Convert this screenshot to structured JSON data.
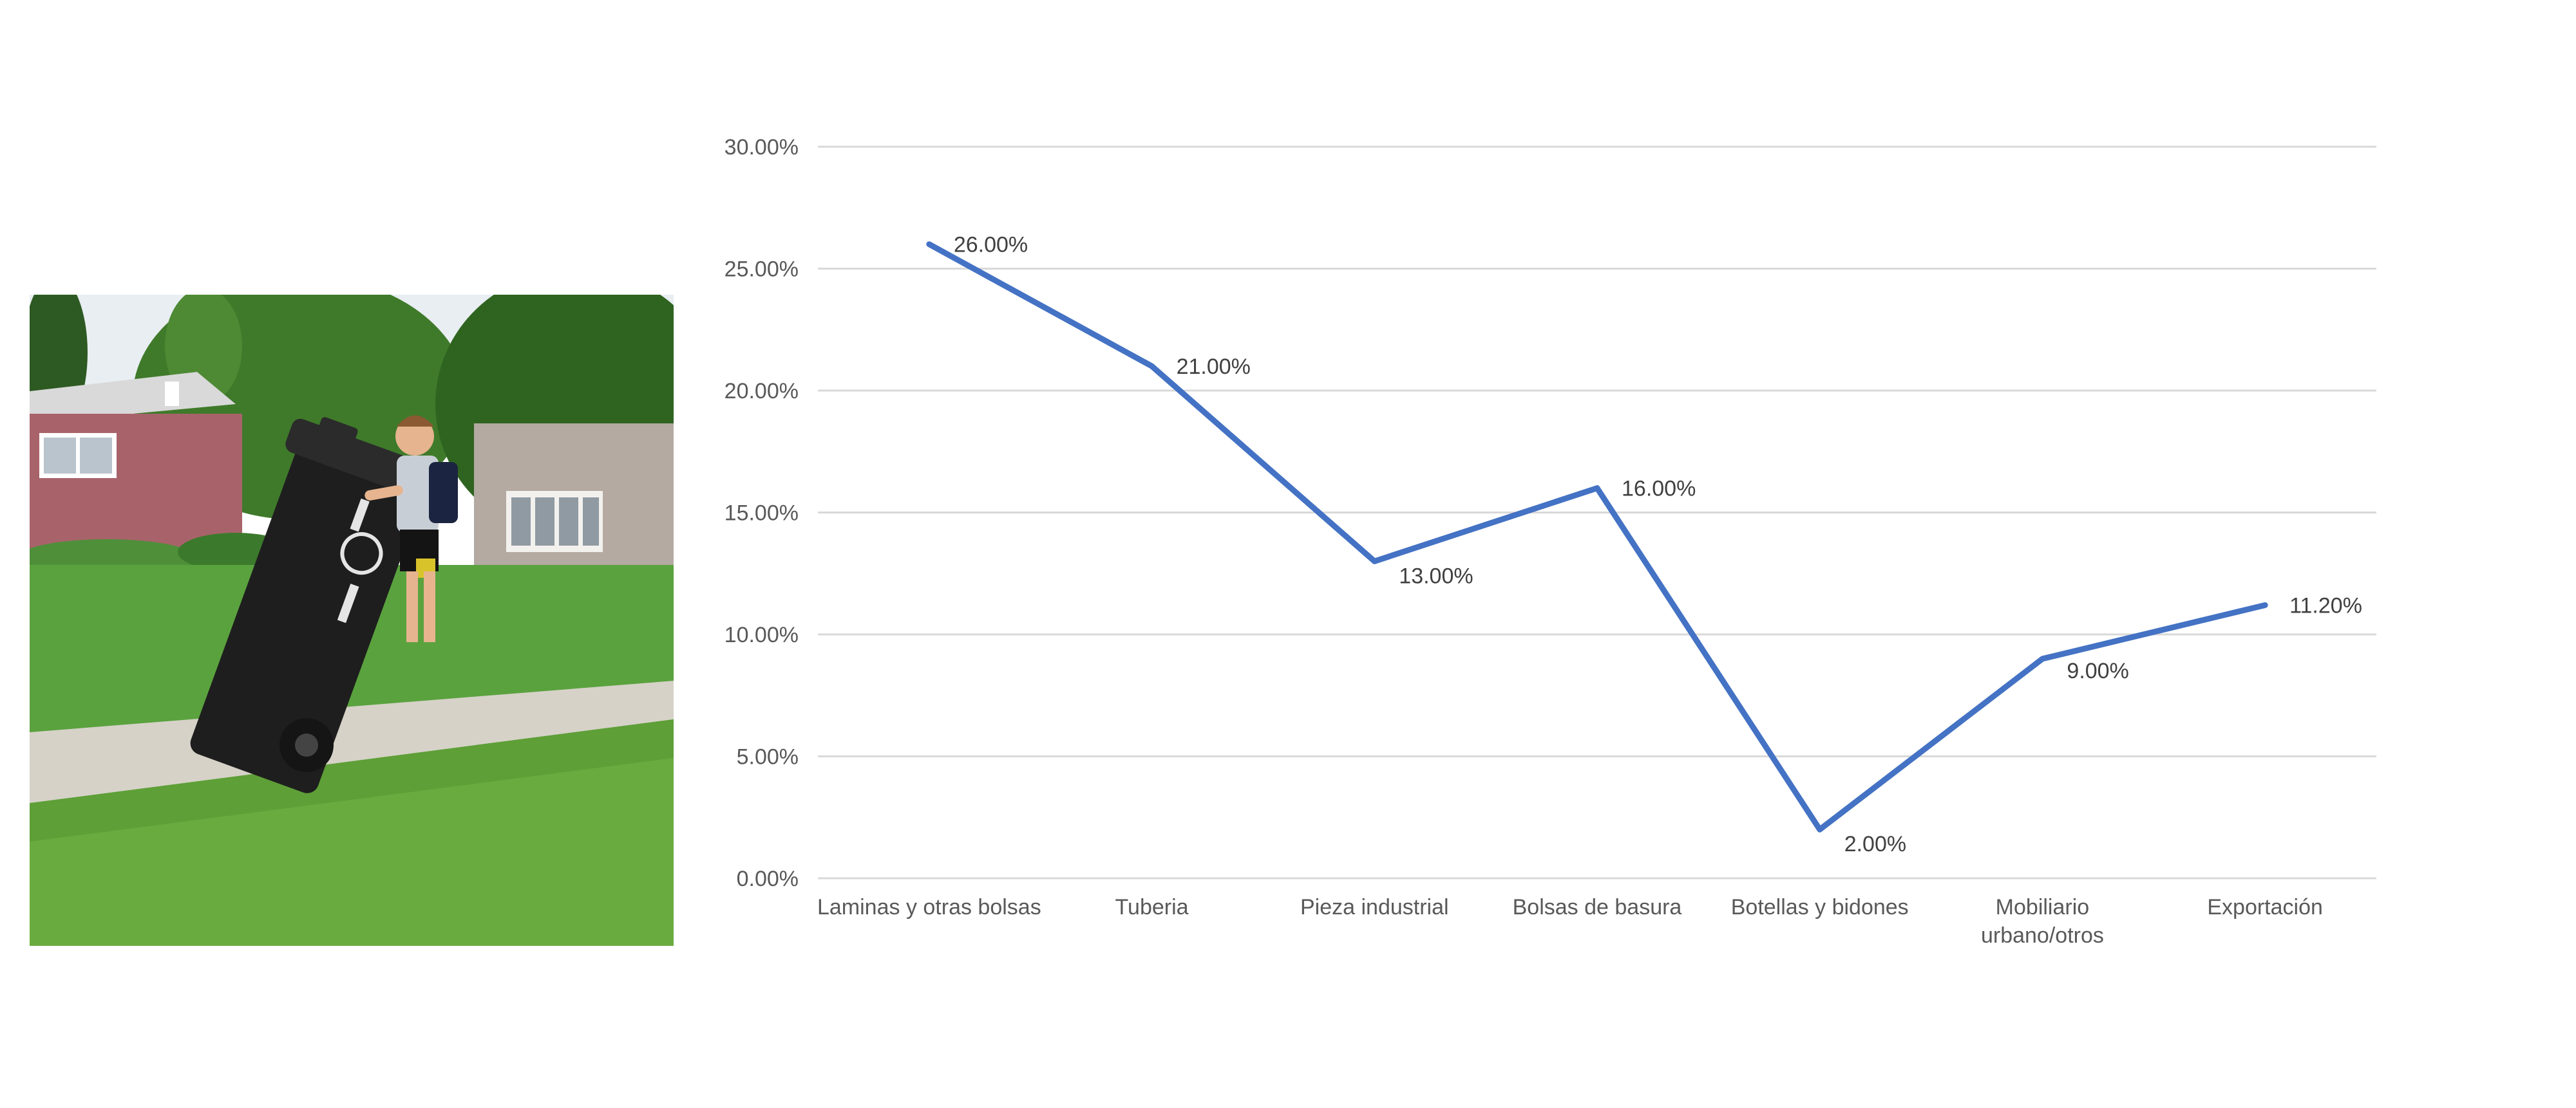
{
  "photo": {
    "description_icon": "photo-boy-pushing-garbage-bin"
  },
  "chart_data": {
    "type": "line",
    "categories": [
      "Laminas y otras bolsas",
      "Tuberia",
      "Pieza industrial",
      "Bolsas de basura",
      "Botellas y bidones",
      "Mobiliario urbano/otros",
      "Exportación"
    ],
    "category_label_lines": [
      [
        "Laminas y otras bolsas"
      ],
      [
        "Tuberia"
      ],
      [
        "Pieza industrial"
      ],
      [
        "Bolsas de basura"
      ],
      [
        "Botellas y bidones"
      ],
      [
        "Mobiliario",
        "urbano/otros"
      ],
      [
        "Exportación"
      ]
    ],
    "series": [
      {
        "values": [
          26.0,
          21.0,
          13.0,
          16.0,
          2.0,
          9.0,
          11.2
        ],
        "labels": [
          "26.00%",
          "21.00%",
          "13.00%",
          "16.00%",
          "2.00%",
          "9.00%",
          "11.20%"
        ],
        "color": "#4472C4"
      }
    ],
    "y_ticks": [
      "0.00%",
      "5.00%",
      "10.00%",
      "15.00%",
      "20.00%",
      "25.00%",
      "30.00%"
    ],
    "ylim": [
      0,
      30
    ],
    "title": "",
    "xlabel": "",
    "ylabel": "",
    "grid": true,
    "legend": "none"
  }
}
